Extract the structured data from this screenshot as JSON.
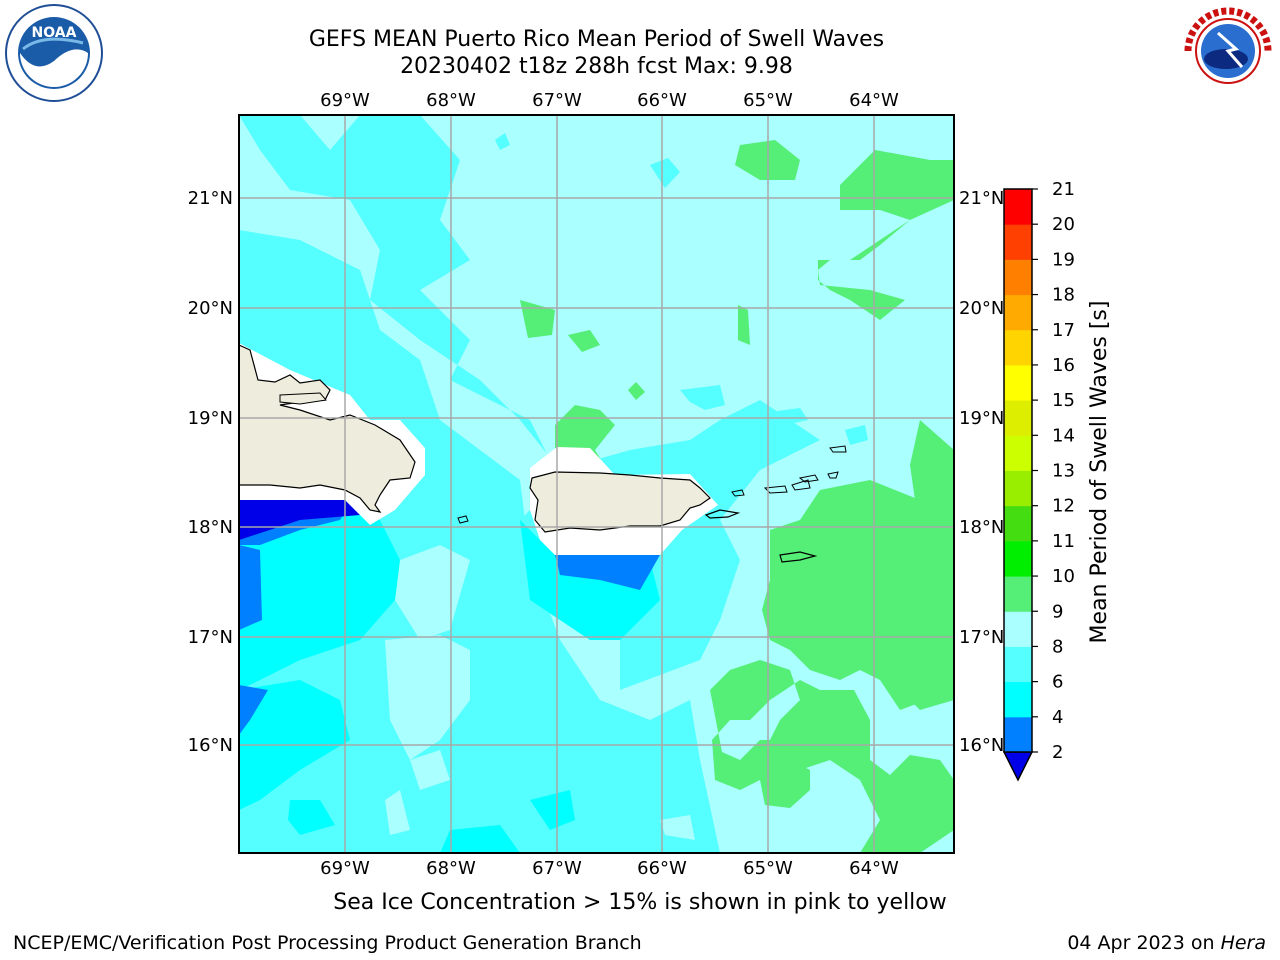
{
  "header": {
    "title_line1": "GEFS MEAN Puerto Rico Mean Period of Swell Waves",
    "title_line2": "20230402 t18z 288h fcst   Max: 9.98"
  },
  "map": {
    "lon_labels": [
      "69°W",
      "68°W",
      "67°W",
      "66°W",
      "65°W",
      "64°W"
    ],
    "lat_labels": [
      "21°N",
      "20°N",
      "19°N",
      "18°N",
      "17°N",
      "16°N"
    ],
    "caption": "Sea Ice Concentration > 15% is shown in pink to yellow"
  },
  "colorbar": {
    "title": "Mean Period of Swell Waves [s]",
    "ticks": [
      "2",
      "4",
      "6",
      "8",
      "9",
      "10",
      "11",
      "12",
      "13",
      "14",
      "15",
      "16",
      "17",
      "18",
      "19",
      "20",
      "21"
    ],
    "colors": [
      "#0000e8",
      "#0080ff",
      "#00ffff",
      "#55ffff",
      "#aaffff",
      "#55ee77",
      "#00ee00",
      "#44dd11",
      "#99ee00",
      "#ccff00",
      "#ddee00",
      "#ffff00",
      "#ffd400",
      "#ffaa00",
      "#ff8000",
      "#ff4000",
      "#ff0000"
    ]
  },
  "colors": {
    "land": "#eeecdc",
    "sea_light": "#aaffff",
    "sea_mid": "#55ffff",
    "sea_cyan": "#00ffff",
    "sea_green": "#55ee77",
    "sea_blue": "#0080ff",
    "sea_deep": "#0000e8"
  },
  "logos": {
    "left": "NOAA",
    "right": "NATIONAL WEATHER SERVICE"
  },
  "footer": {
    "left": "NCEP/EMC/Verification Post Processing Product Generation Branch",
    "right_date": "04 Apr 2023 on ",
    "right_machine": "Hera"
  }
}
